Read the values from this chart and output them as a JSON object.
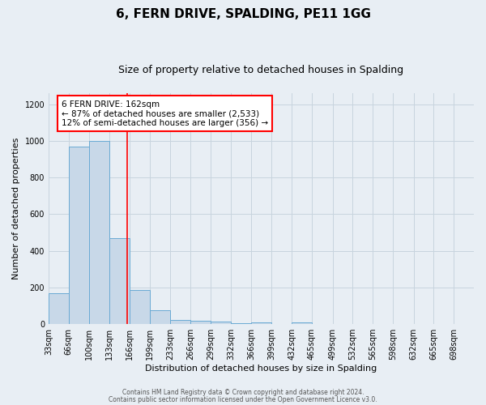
{
  "title": "6, FERN DRIVE, SPALDING, PE11 1GG",
  "subtitle": "Size of property relative to detached houses in Spalding",
  "xlabel": "Distribution of detached houses by size in Spalding",
  "ylabel": "Number of detached properties",
  "footer_line1": "Contains HM Land Registry data © Crown copyright and database right 2024.",
  "footer_line2": "Contains public sector information licensed under the Open Government Licence v3.0.",
  "bin_labels": [
    "33sqm",
    "66sqm",
    "100sqm",
    "133sqm",
    "166sqm",
    "199sqm",
    "233sqm",
    "266sqm",
    "299sqm",
    "332sqm",
    "366sqm",
    "399sqm",
    "432sqm",
    "465sqm",
    "499sqm",
    "532sqm",
    "565sqm",
    "598sqm",
    "632sqm",
    "665sqm",
    "698sqm"
  ],
  "bin_edges": [
    33,
    66,
    100,
    133,
    166,
    199,
    233,
    266,
    299,
    332,
    366,
    399,
    432,
    465,
    499,
    532,
    565,
    598,
    632,
    665,
    698,
    731
  ],
  "bin_heights": [
    170,
    970,
    1000,
    470,
    185,
    75,
    25,
    20,
    15,
    5,
    10,
    0,
    10,
    0,
    0,
    0,
    0,
    0,
    0,
    0,
    0
  ],
  "bar_facecolor": "#c8d8e8",
  "bar_edgecolor": "#6aaad4",
  "grid_color": "#c8d4de",
  "background_color": "#e8eef4",
  "red_line_x": 162,
  "annotation_line1": "6 FERN DRIVE: 162sqm",
  "annotation_line2": "← 87% of detached houses are smaller (2,533)",
  "annotation_line3": "12% of semi-detached houses are larger (356) →",
  "ylim": [
    0,
    1260
  ],
  "yticks": [
    0,
    200,
    400,
    600,
    800,
    1000,
    1200
  ],
  "title_fontsize": 11,
  "subtitle_fontsize": 9,
  "ylabel_fontsize": 8,
  "xlabel_fontsize": 8,
  "tick_labelsize": 7,
  "footer_fontsize": 5.5
}
